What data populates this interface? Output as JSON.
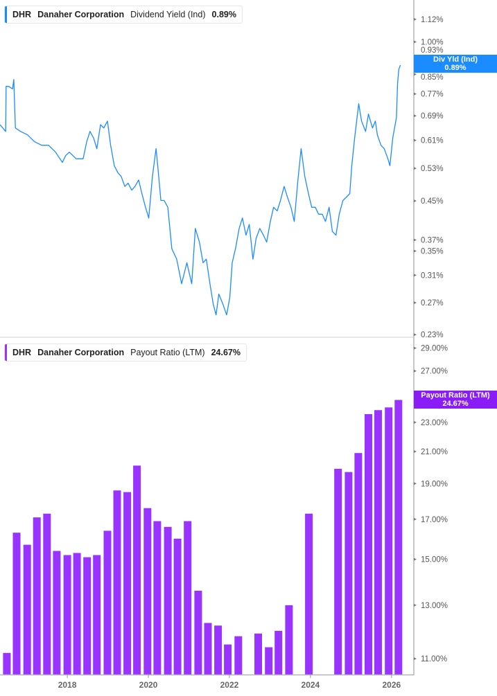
{
  "top_legend": {
    "ticker": "DHR",
    "company": "Danaher Corporation",
    "metric": "Dividend Yield (Ind)",
    "value": "0.89%"
  },
  "bottom_legend": {
    "ticker": "DHR",
    "company": "Danaher Corporation",
    "metric": "Payout Ratio (LTM)",
    "value": "24.67%"
  },
  "top_tag": {
    "label": "Div Yld (Ind)",
    "value": "0.89%"
  },
  "bottom_tag": {
    "label": "Payout Ratio (LTM)",
    "value": "24.67%"
  },
  "colors": {
    "line": "#1a8cff",
    "bars": "#9933ff",
    "line_tag": "#1a8cff",
    "bar_tag": "#8a1cf5"
  },
  "chart_data": [
    {
      "type": "line",
      "series": [
        {
          "name": "Dividend Yield (Ind)",
          "x": [
            2016.34,
            2016.48,
            2016.49,
            2016.55,
            2016.65,
            2016.68,
            2016.72,
            2016.85,
            2017.02,
            2017.19,
            2017.37,
            2017.54,
            2017.71,
            2017.88,
            2017.96,
            2018.05,
            2018.22,
            2018.39,
            2018.48,
            2018.56,
            2018.65,
            2018.73,
            2018.82,
            2018.9,
            2018.99,
            2019.07,
            2019.16,
            2019.25,
            2019.33,
            2019.42,
            2019.5,
            2019.59,
            2019.67,
            2019.76,
            2019.84,
            2019.93,
            2020.01,
            2020.1,
            2020.19,
            2020.24,
            2020.31,
            2020.39,
            2020.48,
            2020.58,
            2020.7,
            2020.82,
            2020.95,
            2021.07,
            2021.16,
            2021.26,
            2021.35,
            2021.43,
            2021.52,
            2021.6,
            2021.67,
            2021.74,
            2021.84,
            2021.93,
            2022.01,
            2022.07,
            2022.15,
            2022.24,
            2022.32,
            2022.41,
            2022.49,
            2022.58,
            2022.66,
            2022.75,
            2022.84,
            2022.92,
            2023.01,
            2023.09,
            2023.18,
            2023.26,
            2023.35,
            2023.43,
            2023.52,
            2023.6,
            2023.69,
            2023.77,
            2023.86,
            2023.95,
            2024.03,
            2024.12,
            2024.2,
            2024.29,
            2024.37,
            2024.46,
            2024.54,
            2024.63,
            2024.71,
            2024.8,
            2024.89,
            2024.97,
            2025.02,
            2025.09,
            2025.19,
            2025.26,
            2025.36,
            2025.43,
            2025.53,
            2025.6,
            2025.65,
            2025.74,
            2025.82,
            2025.91,
            2025.96,
            2026.03,
            2026.12,
            2026.15,
            2026.18,
            2026.22
          ],
          "y": [
            0.66,
            0.638,
            0.8,
            0.8,
            0.79,
            0.828,
            0.649,
            0.638,
            0.627,
            0.606,
            0.595,
            0.595,
            0.575,
            0.546,
            0.565,
            0.575,
            0.556,
            0.556,
            0.606,
            0.638,
            0.617,
            0.585,
            0.66,
            0.649,
            0.672,
            0.595,
            0.537,
            0.518,
            0.509,
            0.484,
            0.492,
            0.475,
            0.484,
            0.5,
            0.467,
            0.436,
            0.413,
            0.509,
            0.585,
            0.528,
            0.451,
            0.451,
            0.436,
            0.354,
            0.336,
            0.297,
            0.33,
            0.297,
            0.392,
            0.366,
            0.33,
            0.336,
            0.297,
            0.268,
            0.254,
            0.282,
            0.268,
            0.254,
            0.277,
            0.33,
            0.354,
            0.392,
            0.413,
            0.379,
            0.4,
            0.336,
            0.373,
            0.392,
            0.379,
            0.366,
            0.406,
            0.436,
            0.428,
            0.451,
            0.484,
            0.459,
            0.436,
            0.406,
            0.5,
            0.585,
            0.509,
            0.467,
            0.436,
            0.436,
            0.421,
            0.421,
            0.406,
            0.436,
            0.386,
            0.379,
            0.421,
            0.451,
            0.459,
            0.467,
            0.537,
            0.617,
            0.733,
            0.672,
            0.638,
            0.696,
            0.649,
            0.672,
            0.627,
            0.595,
            0.585,
            0.556,
            0.537,
            0.617,
            0.684,
            0.814,
            0.872,
            0.89
          ]
        }
      ],
      "y_scale": "log",
      "ylim": [
        0.227,
        1.234
      ],
      "yticks": [
        "1.12%",
        "1.00%",
        "0.93%",
        "0.85%",
        "0.77%",
        "0.69%",
        "0.61%",
        "0.53%",
        "0.45%",
        "0.37%",
        "0.35%",
        "0.31%",
        "0.27%",
        "0.23%"
      ],
      "ytick_values": [
        1.12,
        1.0,
        0.93,
        0.85,
        0.77,
        0.69,
        0.61,
        0.53,
        0.45,
        0.37,
        0.35,
        0.31,
        0.27,
        0.23
      ],
      "xlim": [
        2016.34,
        2026.55
      ],
      "grid": false
    },
    {
      "type": "bar",
      "series": [
        {
          "name": "Payout Ratio (LTM)",
          "x": [
            2016.51,
            2016.75,
            2017.01,
            2017.25,
            2017.5,
            2017.74,
            2018.0,
            2018.24,
            2018.49,
            2018.73,
            2018.99,
            2019.23,
            2019.48,
            2019.72,
            2019.98,
            2020.22,
            2020.48,
            2020.72,
            2020.97,
            2021.23,
            2021.47,
            2021.72,
            2021.96,
            2022.22,
            2022.71,
            2022.97,
            2023.21,
            2023.47,
            2023.96,
            2024.68,
            2024.94,
            2025.18,
            2025.43,
            2025.67,
            2025.93,
            2026.17
          ],
          "y": [
            11.2,
            16.3,
            15.7,
            17.1,
            17.3,
            15.4,
            15.2,
            15.3,
            15.1,
            15.2,
            16.4,
            18.6,
            18.5,
            20.1,
            17.6,
            16.9,
            16.6,
            16.0,
            16.9,
            13.6,
            12.3,
            12.2,
            11.5,
            11.8,
            11.9,
            11.4,
            12.0,
            13.0,
            17.3,
            19.9,
            19.7,
            20.9,
            23.6,
            23.9,
            24.1,
            24.67
          ]
        }
      ],
      "y_scale": "log",
      "ylim": [
        10.47,
        30.0
      ],
      "yticks": [
        "29.00%",
        "27.00%",
        "23.00%",
        "21.00%",
        "19.00%",
        "17.00%",
        "15.00%",
        "13.00%",
        "11.00%"
      ],
      "ytick_values": [
        29,
        27,
        23,
        21,
        19,
        17,
        15,
        13,
        11
      ],
      "xticks": [
        "2018",
        "2020",
        "2022",
        "2024",
        "2026"
      ],
      "xtick_values": [
        2018,
        2020,
        2022,
        2024,
        2026
      ],
      "xlim": [
        2016.34,
        2026.55
      ],
      "grid": false
    }
  ]
}
